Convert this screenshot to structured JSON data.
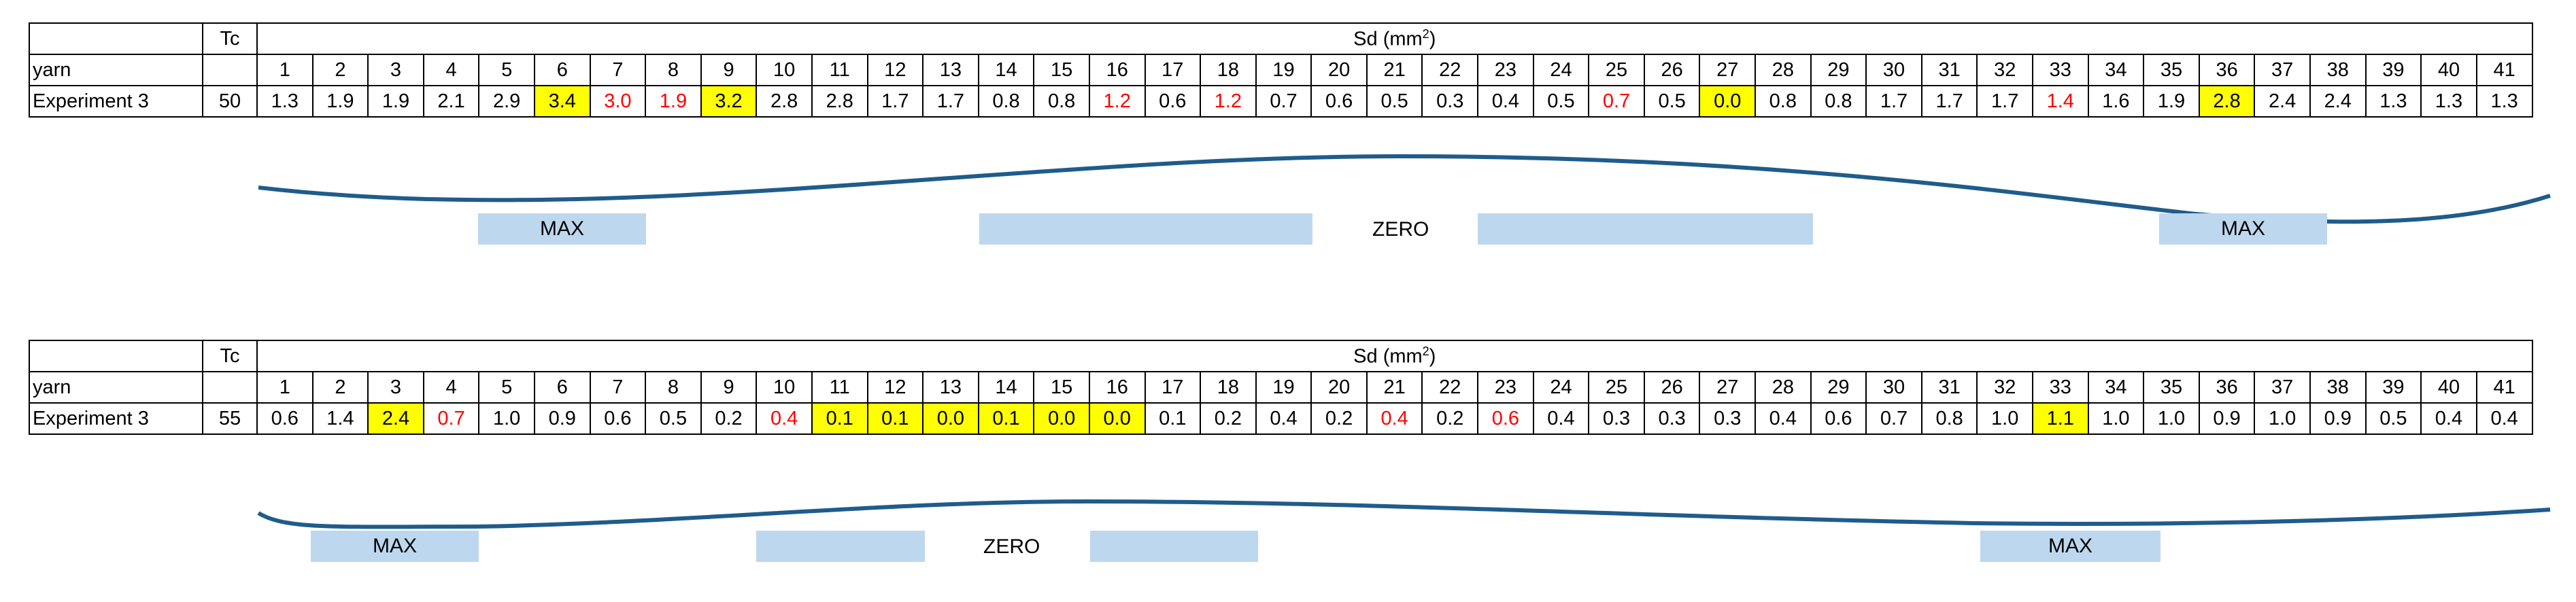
{
  "tables": [
    {
      "tc_header": "Tc",
      "sd_header": "Sd (mm",
      "sd_header_sup": "2",
      "sd_header_close": ")",
      "row_label_yarn": "yarn",
      "experiment_label": "Experiment 3",
      "tc_value": "50",
      "columns": [
        "1",
        "2",
        "3",
        "4",
        "5",
        "6",
        "7",
        "8",
        "9",
        "10",
        "11",
        "12",
        "13",
        "14",
        "15",
        "16",
        "17",
        "18",
        "19",
        "20",
        "21",
        "22",
        "23",
        "24",
        "25",
        "26",
        "27",
        "28",
        "29",
        "30",
        "31",
        "32",
        "33",
        "34",
        "35",
        "36",
        "37",
        "38",
        "39",
        "40",
        "41"
      ],
      "values": [
        "1.3",
        "1.9",
        "1.9",
        "2.1",
        "2.9",
        "3.4",
        "3.0",
        "1.9",
        "3.2",
        "2.8",
        "2.8",
        "1.7",
        "1.7",
        "0.8",
        "0.8",
        "1.2",
        "0.6",
        "1.2",
        "0.7",
        "0.6",
        "0.5",
        "0.3",
        "0.4",
        "0.5",
        "0.7",
        "0.5",
        "0.0",
        "0.8",
        "0.8",
        "1.7",
        "1.7",
        "1.7",
        "1.4",
        "1.6",
        "1.9",
        "2.8",
        "2.4",
        "2.4",
        "1.3",
        "1.3",
        "1.3"
      ],
      "highlight_yellow": [
        6,
        9,
        27,
        36
      ],
      "highlight_red": [
        7,
        8,
        16,
        18,
        25,
        33
      ],
      "bands": {
        "max_left": "MAX",
        "zero": "ZERO",
        "max_right": "MAX"
      }
    },
    {
      "tc_header": "Tc",
      "sd_header": "Sd (mm",
      "sd_header_sup": "2",
      "sd_header_close": ")",
      "row_label_yarn": "yarn",
      "experiment_label": "Experiment 3",
      "tc_value": "55",
      "columns": [
        "1",
        "2",
        "3",
        "4",
        "5",
        "6",
        "7",
        "8",
        "9",
        "10",
        "11",
        "12",
        "13",
        "14",
        "15",
        "16",
        "17",
        "18",
        "19",
        "20",
        "21",
        "22",
        "23",
        "24",
        "25",
        "26",
        "27",
        "28",
        "29",
        "30",
        "31",
        "32",
        "33",
        "34",
        "35",
        "36",
        "37",
        "38",
        "39",
        "40",
        "41"
      ],
      "values": [
        "0.6",
        "1.4",
        "2.4",
        "0.7",
        "1.0",
        "0.9",
        "0.6",
        "0.5",
        "0.2",
        "0.4",
        "0.1",
        "0.1",
        "0.0",
        "0.1",
        "0.0",
        "0.0",
        "0.1",
        "0.2",
        "0.4",
        "0.2",
        "0.4",
        "0.2",
        "0.6",
        "0.4",
        "0.3",
        "0.3",
        "0.3",
        "0.4",
        "0.6",
        "0.7",
        "0.8",
        "1.0",
        "1.1",
        "1.0",
        "1.0",
        "0.9",
        "1.0",
        "0.9",
        "0.5",
        "0.4",
        "0.4"
      ],
      "highlight_yellow": [
        3,
        11,
        12,
        13,
        14,
        15,
        16,
        33
      ],
      "highlight_red": [
        4,
        10,
        21,
        23
      ],
      "bands": {
        "max_left": "MAX",
        "zero": "ZERO",
        "max_right": "MAX"
      }
    }
  ],
  "chart_data": {
    "type": "table",
    "series": [
      {
        "name": "Experiment 3",
        "tc": 50,
        "x": [
          1,
          2,
          3,
          4,
          5,
          6,
          7,
          8,
          9,
          10,
          11,
          12,
          13,
          14,
          15,
          16,
          17,
          18,
          19,
          20,
          21,
          22,
          23,
          24,
          25,
          26,
          27,
          28,
          29,
          30,
          31,
          32,
          33,
          34,
          35,
          36,
          37,
          38,
          39,
          40,
          41
        ],
        "values": [
          1.3,
          1.9,
          1.9,
          2.1,
          2.9,
          3.4,
          3.0,
          1.9,
          3.2,
          2.8,
          2.8,
          1.7,
          1.7,
          0.8,
          0.8,
          1.2,
          0.6,
          1.2,
          0.7,
          0.6,
          0.5,
          0.3,
          0.4,
          0.5,
          0.7,
          0.5,
          0.0,
          0.8,
          0.8,
          1.7,
          1.7,
          1.7,
          1.4,
          1.6,
          1.9,
          2.8,
          2.4,
          2.4,
          1.3,
          1.3,
          1.3
        ]
      },
      {
        "name": "Experiment 3",
        "tc": 55,
        "x": [
          1,
          2,
          3,
          4,
          5,
          6,
          7,
          8,
          9,
          10,
          11,
          12,
          13,
          14,
          15,
          16,
          17,
          18,
          19,
          20,
          21,
          22,
          23,
          24,
          25,
          26,
          27,
          28,
          29,
          30,
          31,
          32,
          33,
          34,
          35,
          36,
          37,
          38,
          39,
          40,
          41
        ],
        "values": [
          0.6,
          1.4,
          2.4,
          0.7,
          1.0,
          0.9,
          0.6,
          0.5,
          0.2,
          0.4,
          0.1,
          0.1,
          0.0,
          0.1,
          0.0,
          0.0,
          0.1,
          0.2,
          0.4,
          0.2,
          0.4,
          0.2,
          0.6,
          0.4,
          0.3,
          0.3,
          0.3,
          0.4,
          0.6,
          0.7,
          0.8,
          1.0,
          1.1,
          1.0,
          1.0,
          0.9,
          1.0,
          0.9,
          0.5,
          0.4,
          0.4
        ]
      }
    ],
    "colors": {
      "highlight": "#ffff00",
      "red_text": "#ff0000",
      "band": "#bdd7ee",
      "wave": "#1f5c8b"
    }
  }
}
